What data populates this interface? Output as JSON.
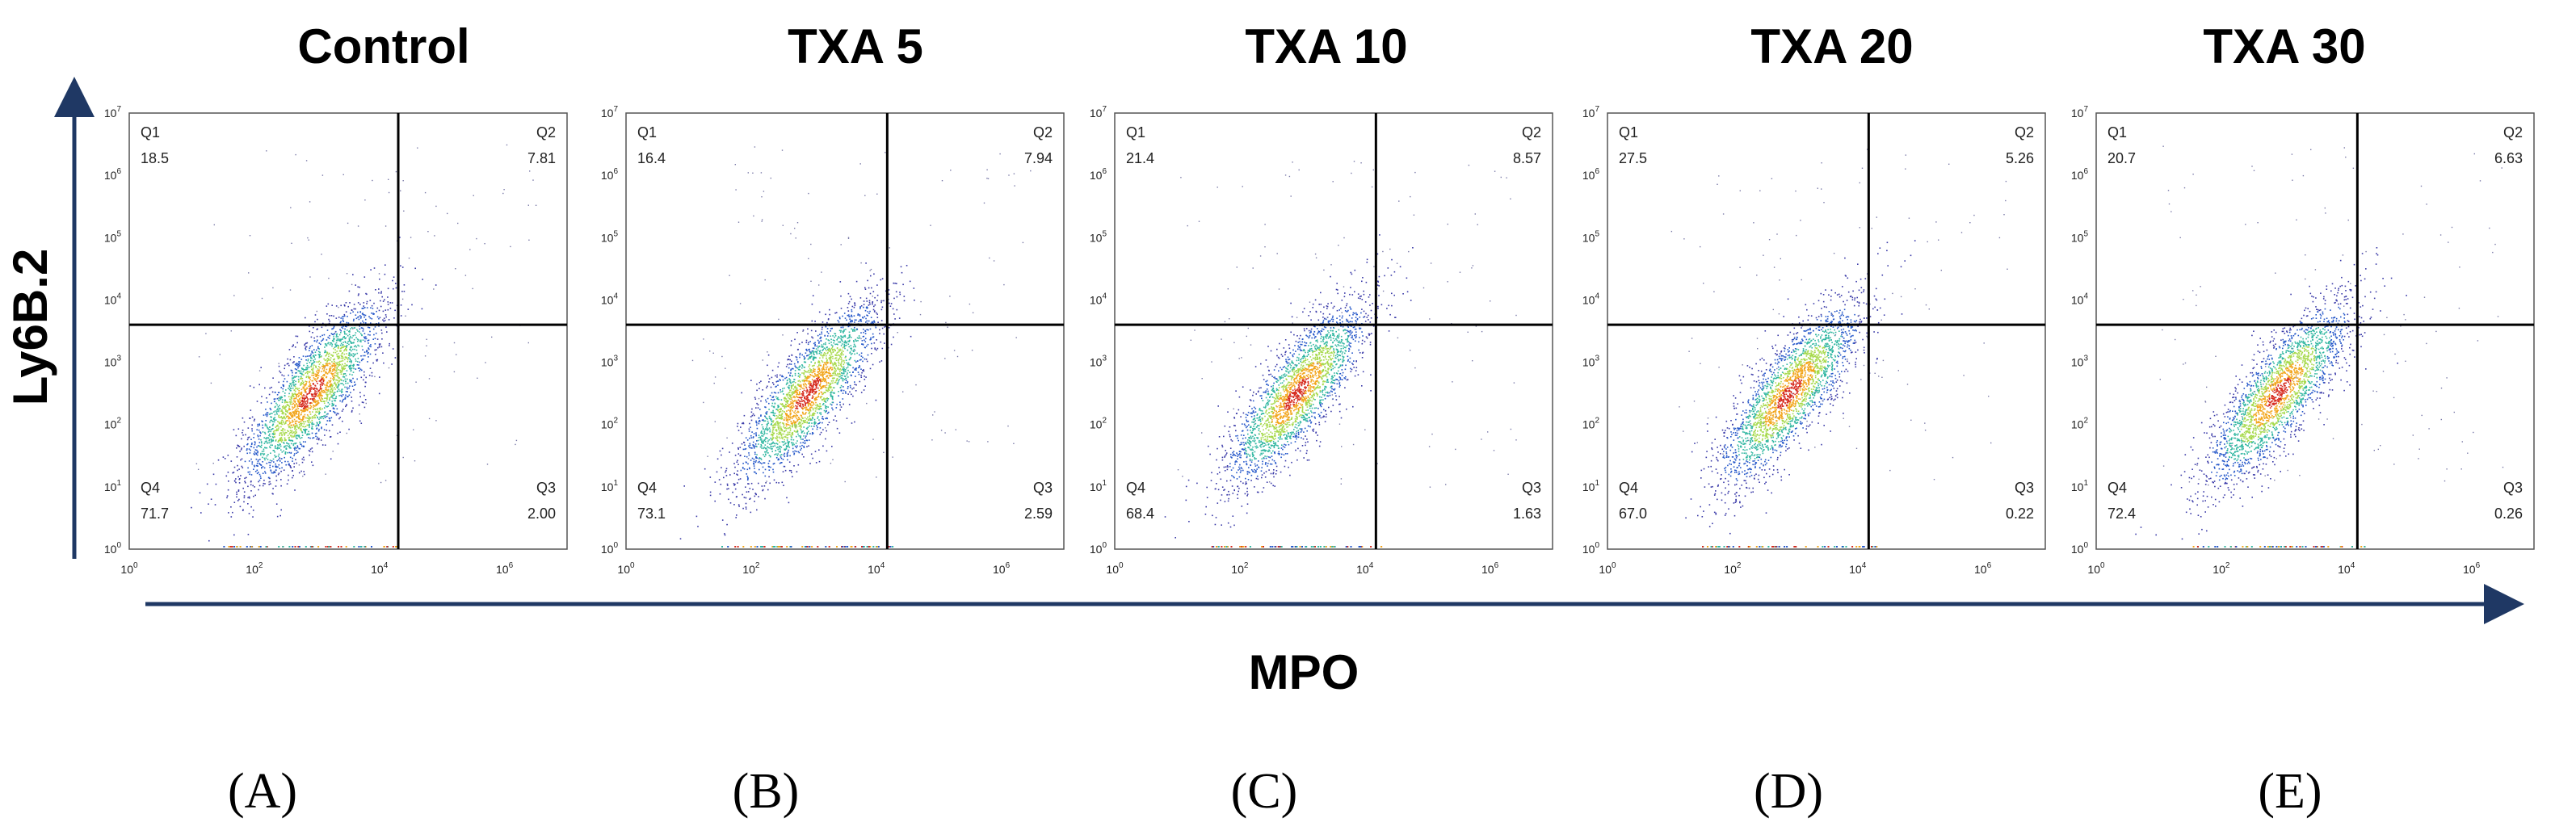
{
  "figure": {
    "y_axis_title": "Ly6B.2",
    "x_axis_title": "MPO",
    "axis_arrow_color": "#1f3864"
  },
  "chart_data": [
    {
      "type": "scatter",
      "subtype": "flow-cytometry-density-plot",
      "title": "Control",
      "panel_letter": "(A)",
      "xlabel": "MPO",
      "ylabel": "Ly6B.2",
      "x_scale": "log",
      "y_scale": "log",
      "xlim": [
        1,
        10000000
      ],
      "ylim": [
        1,
        10000000
      ],
      "x_ticks": [
        "10",
        "10",
        "10",
        "10"
      ],
      "x_tick_exponents": [
        "0",
        "2",
        "4",
        "6"
      ],
      "y_ticks": [
        "10",
        "10",
        "10",
        "10",
        "10",
        "10",
        "10",
        "10"
      ],
      "y_tick_exponents": [
        "0",
        "1",
        "2",
        "3",
        "4",
        "5",
        "6",
        "7"
      ],
      "gate": {
        "x": 20000,
        "y": 4000
      },
      "quadrants": [
        {
          "name": "Q1",
          "percent": "18.5"
        },
        {
          "name": "Q2",
          "percent": "7.81"
        },
        {
          "name": "Q3",
          "percent": "2.00"
        },
        {
          "name": "Q4",
          "percent": "71.7"
        }
      ]
    },
    {
      "type": "scatter",
      "subtype": "flow-cytometry-density-plot",
      "title": "TXA 5",
      "panel_letter": "(B)",
      "xlabel": "MPO",
      "ylabel": "Ly6B.2",
      "x_scale": "log",
      "y_scale": "log",
      "xlim": [
        1,
        10000000
      ],
      "ylim": [
        1,
        10000000
      ],
      "x_ticks": [
        "10",
        "10",
        "10",
        "10"
      ],
      "x_tick_exponents": [
        "0",
        "2",
        "4",
        "6"
      ],
      "y_ticks": [
        "10",
        "10",
        "10",
        "10",
        "10",
        "10",
        "10",
        "10"
      ],
      "y_tick_exponents": [
        "0",
        "1",
        "2",
        "3",
        "4",
        "5",
        "6",
        "7"
      ],
      "gate": {
        "x": 15000,
        "y": 4000
      },
      "quadrants": [
        {
          "name": "Q1",
          "percent": "16.4"
        },
        {
          "name": "Q2",
          "percent": "7.94"
        },
        {
          "name": "Q3",
          "percent": "2.59"
        },
        {
          "name": "Q4",
          "percent": "73.1"
        }
      ]
    },
    {
      "type": "scatter",
      "subtype": "flow-cytometry-density-plot",
      "title": "TXA 10",
      "panel_letter": "(C)",
      "xlabel": "MPO",
      "ylabel": "Ly6B.2",
      "x_scale": "log",
      "y_scale": "log",
      "xlim": [
        1,
        10000000
      ],
      "ylim": [
        1,
        10000000
      ],
      "x_ticks": [
        "10",
        "10",
        "10",
        "10"
      ],
      "x_tick_exponents": [
        "0",
        "2",
        "4",
        "6"
      ],
      "y_ticks": [
        "10",
        "10",
        "10",
        "10",
        "10",
        "10",
        "10",
        "10"
      ],
      "y_tick_exponents": [
        "0",
        "1",
        "2",
        "3",
        "4",
        "5",
        "6",
        "7"
      ],
      "gate": {
        "x": 15000,
        "y": 4000
      },
      "quadrants": [
        {
          "name": "Q1",
          "percent": "21.4"
        },
        {
          "name": "Q2",
          "percent": "8.57"
        },
        {
          "name": "Q3",
          "percent": "1.63"
        },
        {
          "name": "Q4",
          "percent": "68.4"
        }
      ]
    },
    {
      "type": "scatter",
      "subtype": "flow-cytometry-density-plot",
      "title": "TXA 20",
      "panel_letter": "(D)",
      "xlabel": "MPO",
      "ylabel": "Ly6B.2",
      "x_scale": "log",
      "y_scale": "log",
      "xlim": [
        1,
        10000000
      ],
      "ylim": [
        1,
        10000000
      ],
      "x_ticks": [
        "10",
        "10",
        "10",
        "10"
      ],
      "x_tick_exponents": [
        "0",
        "2",
        "4",
        "6"
      ],
      "y_ticks": [
        "10",
        "10",
        "10",
        "10",
        "10",
        "10",
        "10",
        "10"
      ],
      "y_tick_exponents": [
        "0",
        "1",
        "2",
        "3",
        "4",
        "5",
        "6",
        "7"
      ],
      "gate": {
        "x": 15000,
        "y": 4000
      },
      "quadrants": [
        {
          "name": "Q1",
          "percent": "27.5"
        },
        {
          "name": "Q2",
          "percent": "5.26"
        },
        {
          "name": "Q3",
          "percent": "0.22"
        },
        {
          "name": "Q4",
          "percent": "67.0"
        }
      ]
    },
    {
      "type": "scatter",
      "subtype": "flow-cytometry-density-plot",
      "title": "TXA 30",
      "panel_letter": "(E)",
      "xlabel": "MPO",
      "ylabel": "Ly6B.2",
      "x_scale": "log",
      "y_scale": "log",
      "xlim": [
        1,
        10000000
      ],
      "ylim": [
        1,
        10000000
      ],
      "x_ticks": [
        "10",
        "10",
        "10",
        "10"
      ],
      "x_tick_exponents": [
        "0",
        "2",
        "4",
        "6"
      ],
      "y_ticks": [
        "10",
        "10",
        "10",
        "10",
        "10",
        "10",
        "10",
        "10"
      ],
      "y_tick_exponents": [
        "0",
        "1",
        "2",
        "3",
        "4",
        "5",
        "6",
        "7"
      ],
      "gate": {
        "x": 15000,
        "y": 4000
      },
      "quadrants": [
        {
          "name": "Q1",
          "percent": "20.7"
        },
        {
          "name": "Q2",
          "percent": "6.63"
        },
        {
          "name": "Q3",
          "percent": "0.26"
        },
        {
          "name": "Q4",
          "percent": "72.4"
        }
      ]
    }
  ]
}
